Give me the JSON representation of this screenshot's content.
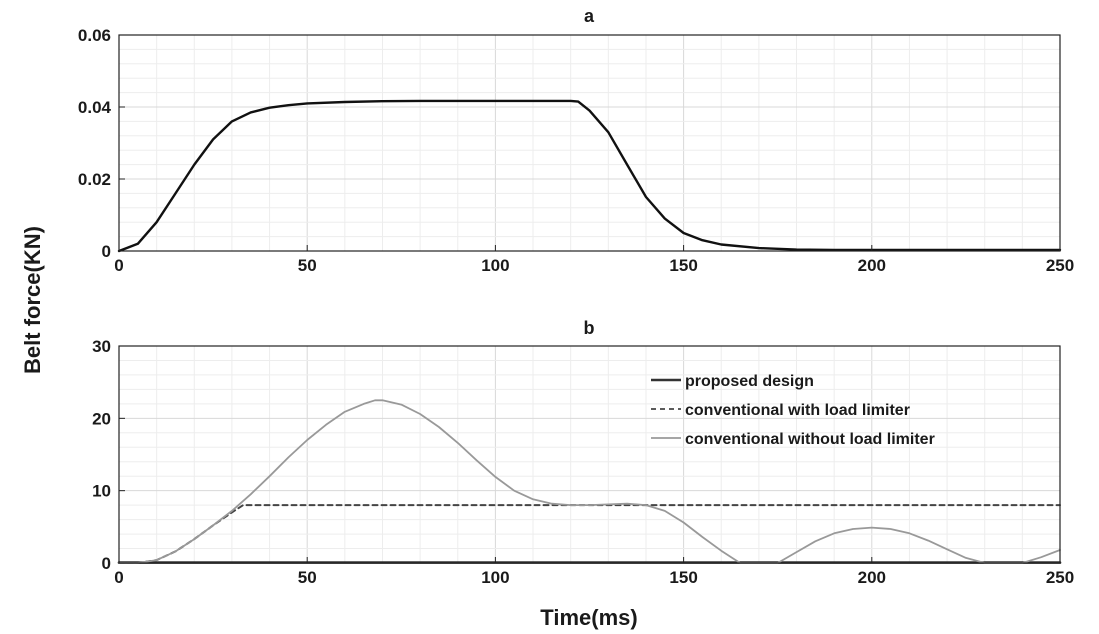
{
  "figure": {
    "ylabel": "Belt force(KN)",
    "xlabel": "Time(ms)"
  },
  "chart_data": [
    {
      "type": "line",
      "title": "a",
      "xlim": [
        0,
        250
      ],
      "ylim": [
        0,
        0.06
      ],
      "xticks": [
        0,
        50,
        100,
        150,
        200,
        250
      ],
      "yticks": [
        0,
        0.02,
        0.04,
        0.06
      ],
      "xtick_labels": [
        "0",
        "50",
        "100",
        "150",
        "200",
        "250"
      ],
      "ytick_labels": [
        "0",
        "0.02",
        "0.04",
        "0.06"
      ],
      "grid": true,
      "series": [
        {
          "color": "#111111",
          "style": "solid",
          "x": [
            0,
            5,
            10,
            15,
            20,
            25,
            30,
            35,
            40,
            45,
            50,
            60,
            70,
            80,
            90,
            100,
            110,
            120,
            122,
            125,
            130,
            135,
            140,
            145,
            150,
            155,
            160,
            170,
            180,
            190,
            200,
            210,
            220,
            230,
            240,
            250
          ],
          "y": [
            0,
            0.002,
            0.008,
            0.016,
            0.024,
            0.031,
            0.036,
            0.0385,
            0.0398,
            0.0405,
            0.041,
            0.0414,
            0.0416,
            0.0417,
            0.0417,
            0.0417,
            0.0417,
            0.0417,
            0.0415,
            0.039,
            0.033,
            0.024,
            0.015,
            0.009,
            0.005,
            0.003,
            0.0018,
            0.0008,
            0.0004,
            0.0003,
            0.0003,
            0.0003,
            0.0003,
            0.0003,
            0.0003,
            0.0003
          ]
        }
      ]
    },
    {
      "type": "line",
      "title": "b",
      "xlim": [
        0,
        250
      ],
      "ylim": [
        0,
        30
      ],
      "xticks": [
        0,
        50,
        100,
        150,
        200,
        250
      ],
      "yticks": [
        0,
        10,
        20,
        30
      ],
      "xtick_labels": [
        "0",
        "50",
        "100",
        "150",
        "200",
        "250"
      ],
      "ytick_labels": [
        "0",
        "10",
        "20",
        "30"
      ],
      "grid": true,
      "legend_position": "top-right",
      "series": [
        {
          "name": "proposed design",
          "color": "#333333",
          "style": "solid",
          "x": [
            0,
            250
          ],
          "y": [
            0.05,
            0.05
          ]
        },
        {
          "name": "conventional with load limiter",
          "color": "#444444",
          "style": "dashed",
          "x": [
            0,
            5,
            10,
            15,
            20,
            25,
            30,
            33,
            40,
            60,
            80,
            100,
            120,
            140,
            160,
            180,
            200,
            220,
            250
          ],
          "y": [
            0,
            0,
            0.4,
            1.6,
            3.3,
            5.2,
            7.0,
            8.0,
            8.0,
            8.0,
            8.0,
            8.0,
            8.0,
            8.0,
            8.0,
            8.0,
            8.0,
            8.0,
            8.0
          ]
        },
        {
          "name": "conventional without load limiter",
          "color": "#999999",
          "style": "solid",
          "x": [
            0,
            5,
            10,
            15,
            20,
            25,
            30,
            35,
            40,
            45,
            50,
            55,
            60,
            65,
            68,
            70,
            75,
            80,
            85,
            90,
            95,
            100,
            105,
            110,
            115,
            120,
            125,
            130,
            135,
            140,
            145,
            150,
            155,
            160,
            165,
            170,
            175,
            180,
            185,
            190,
            195,
            200,
            205,
            210,
            215,
            220,
            225,
            230,
            235,
            240,
            245,
            250
          ],
          "y": [
            0,
            0,
            0.4,
            1.6,
            3.3,
            5.2,
            7.2,
            9.5,
            12.0,
            14.6,
            17.0,
            19.1,
            20.9,
            22.0,
            22.5,
            22.5,
            21.9,
            20.6,
            18.8,
            16.6,
            14.2,
            11.9,
            10.0,
            8.8,
            8.2,
            8.0,
            8.0,
            8.1,
            8.2,
            8.0,
            7.2,
            5.6,
            3.6,
            1.7,
            0,
            0,
            0,
            1.5,
            3.0,
            4.1,
            4.7,
            4.9,
            4.7,
            4.1,
            3.1,
            1.9,
            0.7,
            0,
            0,
            0,
            0.8,
            1.8
          ]
        }
      ]
    }
  ]
}
